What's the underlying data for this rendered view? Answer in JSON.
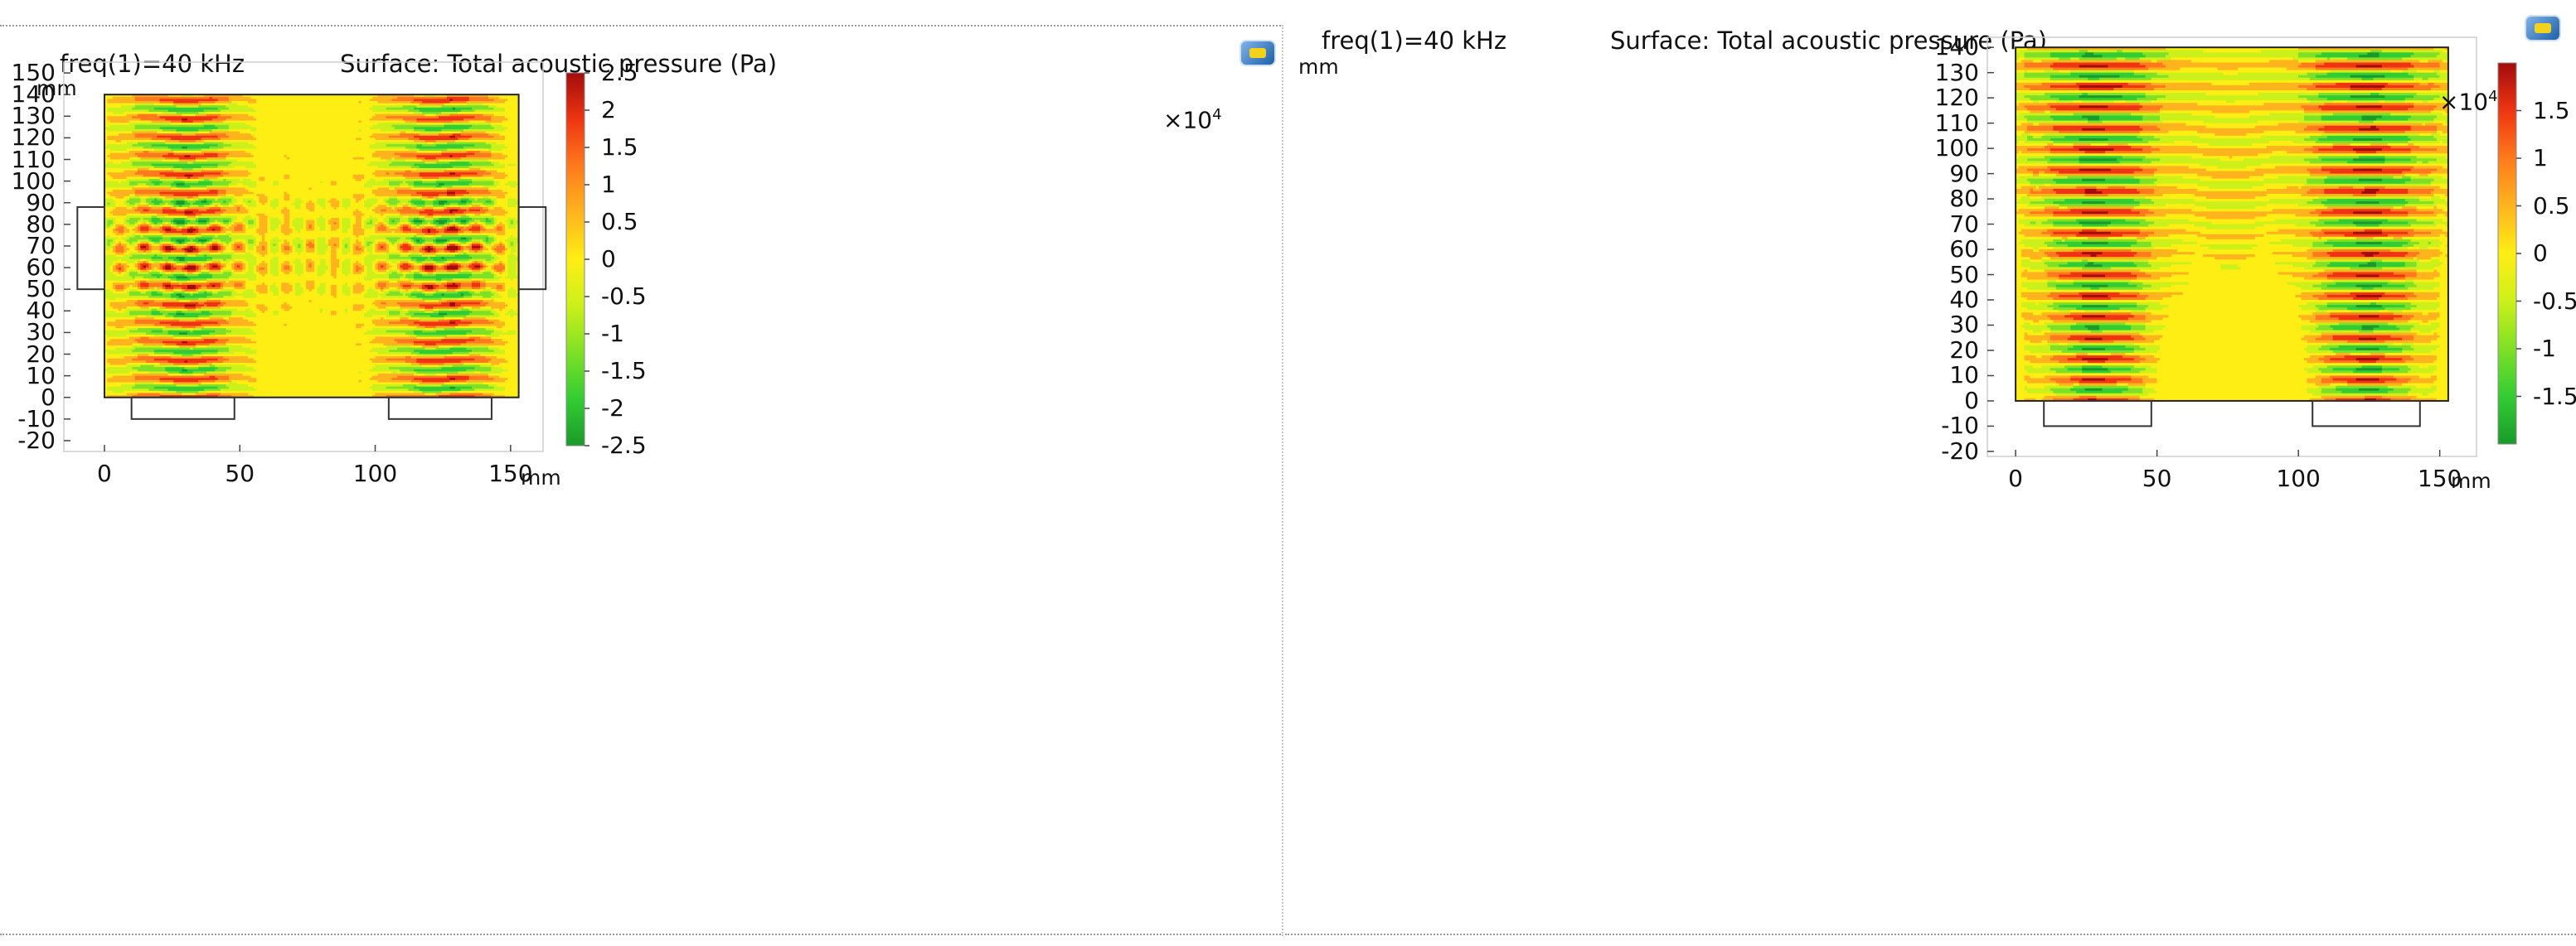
{
  "colorbar_colors": [
    "#1a9a2a",
    "#33cc33",
    "#7fe026",
    "#ccf01a",
    "#ffee14",
    "#ffb41e",
    "#ff7a1c",
    "#ee3512",
    "#a30c0c"
  ],
  "chart_data": [
    {
      "type": "heatmap",
      "title": "Surface: Total acoustic pressure (Pa)",
      "subtitle": "freq(1)=40 kHz",
      "xlabel": "mm",
      "ylabel": "mm",
      "xlim": [
        -15,
        162
      ],
      "ylim": [
        -25,
        155
      ],
      "x_ticks": [
        0,
        50,
        100,
        150
      ],
      "y_ticks": [
        -20,
        -10,
        0,
        10,
        20,
        30,
        40,
        50,
        60,
        70,
        80,
        90,
        100,
        110,
        120,
        130,
        140,
        150
      ],
      "domain": [
        [
          0,
          0
        ],
        [
          153,
          0
        ],
        [
          153,
          140
        ],
        [
          0,
          140
        ]
      ],
      "transducers": [
        {
          "x": [
            10,
            48
          ],
          "y": [
            -10,
            0
          ]
        },
        {
          "x": [
            105,
            143
          ],
          "y": [
            -10,
            0
          ]
        },
        {
          "x": [
            -10,
            0
          ],
          "y": [
            50,
            88
          ]
        },
        {
          "x": [
            153,
            163
          ],
          "y": [
            50,
            88
          ]
        }
      ],
      "colorbar": {
        "multiplier": "×10",
        "exponent": "4",
        "min": -2.5,
        "max": 2.5,
        "ticks": [
          2.5,
          2,
          1.5,
          1,
          0.5,
          0,
          -0.5,
          -1,
          -1.5,
          -2,
          -2.5
        ]
      },
      "field_pattern": "standing waves, vertical lobes centred at x≈30 and x≈125 mm, horizontal lobes from side transducers at y≈69 mm"
    },
    {
      "type": "heatmap",
      "title": "Surface: Total acoustic pressure (Pa)",
      "subtitle": "freq(1)=40 kHz",
      "xlabel": "mm",
      "ylabel": "mm",
      "xlim": [
        -10,
        163
      ],
      "ylim": [
        -22,
        144
      ],
      "x_ticks": [
        0,
        50,
        100,
        150
      ],
      "y_ticks": [
        -20,
        -10,
        0,
        10,
        20,
        30,
        40,
        50,
        60,
        70,
        80,
        90,
        100,
        110,
        120,
        130,
        140
      ],
      "domain": [
        [
          0,
          0
        ],
        [
          153,
          0
        ],
        [
          153,
          140
        ],
        [
          0,
          140
        ]
      ],
      "transducers": [
        {
          "x": [
            10,
            48
          ],
          "y": [
            -10,
            0
          ]
        },
        {
          "x": [
            105,
            143
          ],
          "y": [
            -10,
            0
          ]
        }
      ],
      "colorbar": {
        "multiplier": "×10",
        "exponent": "4",
        "min": -2.0,
        "max": 2.0,
        "ticks": [
          1.5,
          1,
          0.5,
          0,
          -0.5,
          -1,
          -1.5
        ]
      },
      "field_pattern": "standing waves, vertical lobes centred at x≈30 and x≈125 mm from bottom transducers"
    }
  ]
}
